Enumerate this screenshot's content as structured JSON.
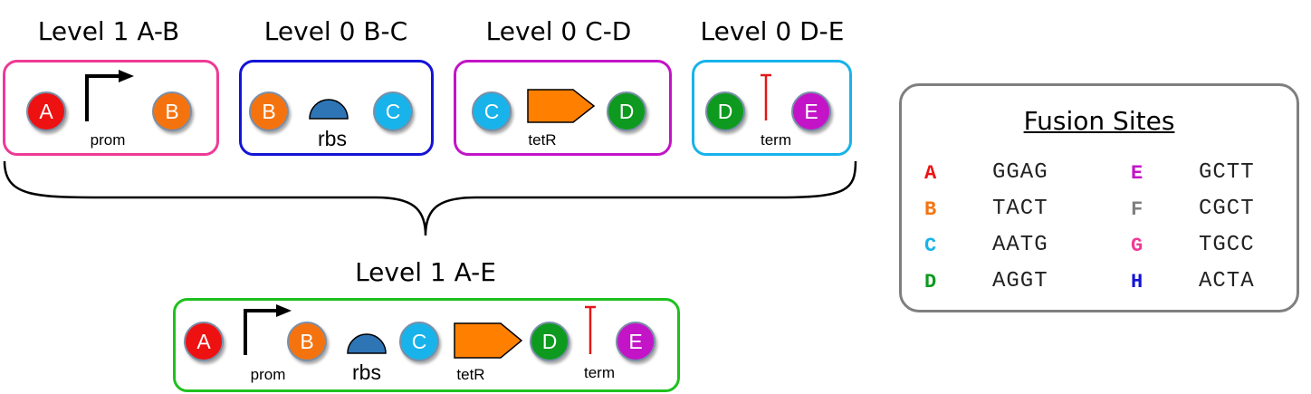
{
  "colors": {
    "A": "#ee1111",
    "B": "#f5730f",
    "C": "#18b3ea",
    "D": "#0e9a1f",
    "E": "#c314c7",
    "F": "#7f7f7f",
    "G": "#ee3a96",
    "H": "#1414d6",
    "rbs": "#2e75b6",
    "cds": "#ff8000",
    "terminator": "#e01818",
    "promoter": "#000000"
  },
  "parts_row": [
    {
      "title": "Level 1 A-B",
      "left_site": "A",
      "right_site": "B",
      "part": "promoter",
      "label": "prom",
      "border": "#ee3a96"
    },
    {
      "title": "Level 0 B-C",
      "left_site": "B",
      "right_site": "C",
      "part": "rbs",
      "label": "rbs",
      "border": "#1414d6"
    },
    {
      "title": "Level 0 C-D",
      "left_site": "C",
      "right_site": "D",
      "part": "cds",
      "label": "tetR",
      "border": "#c314c7"
    },
    {
      "title": "Level 0 D-E",
      "left_site": "D",
      "right_site": "E",
      "part": "terminator",
      "label": "term",
      "border": "#18b3ea"
    }
  ],
  "assembly": {
    "title": "Level 1 A-E",
    "border": "#1fc01f",
    "sites": [
      "A",
      "B",
      "C",
      "D",
      "E"
    ],
    "labels": {
      "prom": "prom",
      "rbs": "rbs",
      "tetR": "tetR",
      "term": "term"
    }
  },
  "fusion_sites": {
    "title": "Fusion Sites",
    "entries": [
      {
        "letter": "A",
        "seq": "GGAG"
      },
      {
        "letter": "B",
        "seq": "TACT"
      },
      {
        "letter": "C",
        "seq": "AATG"
      },
      {
        "letter": "D",
        "seq": "AGGT"
      },
      {
        "letter": "E",
        "seq": "GCTT"
      },
      {
        "letter": "F",
        "seq": "CGCT"
      },
      {
        "letter": "G",
        "seq": "TGCC"
      },
      {
        "letter": "H",
        "seq": "ACTA"
      }
    ]
  }
}
